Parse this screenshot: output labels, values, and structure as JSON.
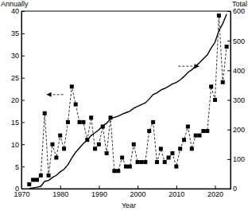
{
  "chart_data": {
    "type": "line",
    "x_label": "Year",
    "x": [
      1972,
      1973,
      1974,
      1975,
      1976,
      1977,
      1978,
      1979,
      1980,
      1981,
      1982,
      1983,
      1984,
      1985,
      1986,
      1987,
      1988,
      1989,
      1990,
      1991,
      1992,
      1993,
      1994,
      1995,
      1996,
      1997,
      1998,
      1999,
      2000,
      2001,
      2002,
      2003,
      2004,
      2005,
      2006,
      2007,
      2008,
      2009,
      2010,
      2011,
      2012,
      2013,
      2014,
      2015,
      2016,
      2017,
      2018,
      2019,
      2020,
      2021,
      2022,
      2023
    ],
    "series": [
      {
        "name": "Annually",
        "color": "#000000",
        "marker": "square",
        "line_style": "dashed",
        "values": [
          1,
          2,
          2,
          3,
          17,
          3,
          10,
          7,
          12,
          9,
          15,
          23,
          19,
          15,
          15,
          11,
          16,
          9,
          10,
          14,
          8,
          16,
          4,
          4,
          7,
          5,
          5,
          10,
          6,
          6,
          6,
          13,
          15,
          6,
          9,
          6,
          7,
          8,
          5,
          9,
          11,
          14,
          9,
          12,
          12,
          13,
          13,
          23,
          20,
          39,
          24,
          32
        ]
      },
      {
        "name": "Total",
        "axis": "y2",
        "color": "#000000",
        "marker": "none",
        "line_style": "solid",
        "values": [
          1,
          3,
          5,
          8,
          25,
          28,
          38,
          45,
          57,
          66,
          81,
          104,
          123,
          138,
          153,
          164,
          180,
          189,
          199,
          213,
          221,
          237,
          241,
          245,
          252,
          257,
          262,
          272,
          278,
          284,
          290,
          303,
          318,
          324,
          333,
          339,
          346,
          354,
          359,
          368,
          379,
          393,
          402,
          414,
          426,
          439,
          452,
          475,
          495,
          534,
          558,
          590
        ]
      }
    ],
    "xlim": [
      1970,
      2024
    ],
    "xticks": [
      1970,
      1980,
      1990,
      2000,
      2010,
      2020
    ],
    "ylim": [
      0,
      40
    ],
    "yticks": [
      0,
      5,
      10,
      15,
      20,
      25,
      30,
      35,
      40
    ],
    "y2lim": [
      0,
      600
    ],
    "y2ticks": [
      0,
      100,
      200,
      300,
      400,
      500,
      600
    ],
    "grid": false
  }
}
